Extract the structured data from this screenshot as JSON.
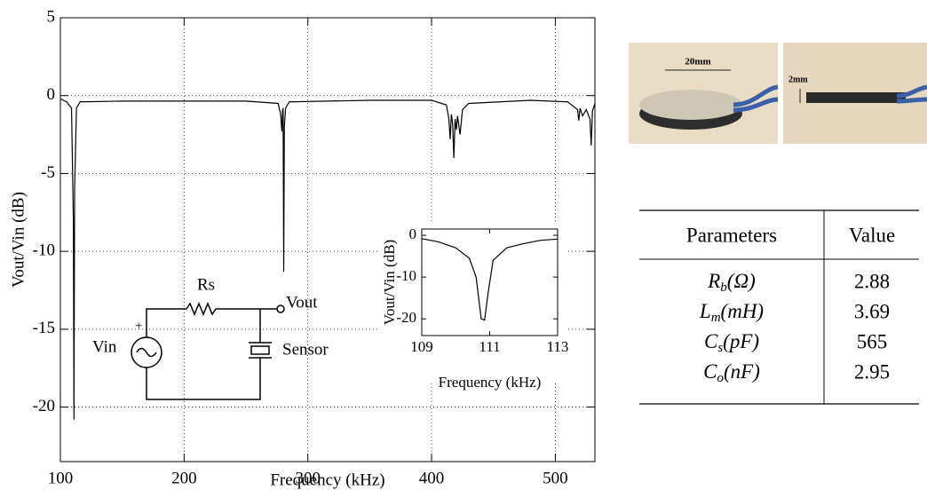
{
  "chart_data": [
    {
      "type": "line",
      "ylabel": "Vout/Vin (dB)",
      "xlabel": "Frequency (kHz)",
      "x": [
        100,
        105,
        109,
        110.5,
        111,
        111.5,
        113,
        116,
        150,
        250,
        276,
        278,
        279,
        279.5,
        280,
        280.5,
        281,
        282,
        285,
        350,
        400,
        412,
        414,
        415,
        416,
        417,
        418,
        419,
        420,
        421,
        423,
        425,
        430,
        480,
        510,
        518,
        519,
        520,
        522,
        525,
        528,
        529,
        530,
        532
      ],
      "values": [
        -0.2,
        -0.4,
        -0.8,
        -8,
        -20.8,
        -6,
        -0.8,
        -0.4,
        -0.35,
        -0.35,
        -0.5,
        -1.2,
        -2.3,
        -1,
        -0.8,
        -11.3,
        -2,
        -0.8,
        -0.4,
        -0.3,
        -0.3,
        -0.6,
        -1.5,
        -2.8,
        -1.2,
        -1.8,
        -4,
        -1.5,
        -2.2,
        -1.3,
        -2.5,
        -0.9,
        -0.5,
        -0.3,
        -0.4,
        -0.9,
        -1.6,
        -0.8,
        -1.3,
        -0.9,
        -1.5,
        -3.2,
        -1,
        -0.5
      ],
      "color": "#000000",
      "xlim": [
        100,
        532
      ],
      "ylim": [
        -23.5,
        5
      ],
      "xticks": [
        100,
        200,
        300,
        400,
        500
      ],
      "yticks": [
        5,
        0,
        -5,
        -10,
        -15,
        -20
      ],
      "grid": true
    },
    {
      "type": "line",
      "ylabel": "Vout/Vin (dB)",
      "xlabel": "Frequency (kHz)",
      "x": [
        109,
        109.5,
        110,
        110.4,
        110.6,
        110.75,
        110.85,
        110.95,
        111.1,
        111.5,
        112,
        112.5,
        113
      ],
      "values": [
        -0.8,
        -1.6,
        -3,
        -5.5,
        -10,
        -20,
        -20.3,
        -14,
        -6,
        -3,
        -2,
        -1.2,
        -0.9
      ],
      "color": "#000000",
      "xlim": [
        109,
        113
      ],
      "ylim": [
        -24,
        1.5
      ],
      "xticks": [
        109,
        111,
        113
      ],
      "yticks": [
        0,
        -10,
        -20
      ],
      "grid": false
    }
  ],
  "circuit": {
    "resistor": "Rs",
    "output": "Vout",
    "source": "Vin",
    "sensor": "Sensor",
    "polarity": "+"
  },
  "photo": {
    "diameter": "20mm",
    "thickness": "2mm"
  },
  "table": {
    "header": [
      "Parameters",
      "Value"
    ],
    "rows": [
      [
        {
          "symbol": "R",
          "sub": "b",
          "unit": "(Ω)"
        },
        2.88
      ],
      [
        {
          "symbol": "L",
          "sub": "m",
          "unit": "(mH)"
        },
        3.69
      ],
      [
        {
          "symbol": "C",
          "sub": "s",
          "unit": "(pF)"
        },
        565
      ],
      [
        {
          "symbol": "C",
          "sub": "o",
          "unit": "(nF)"
        },
        2.95
      ]
    ]
  }
}
